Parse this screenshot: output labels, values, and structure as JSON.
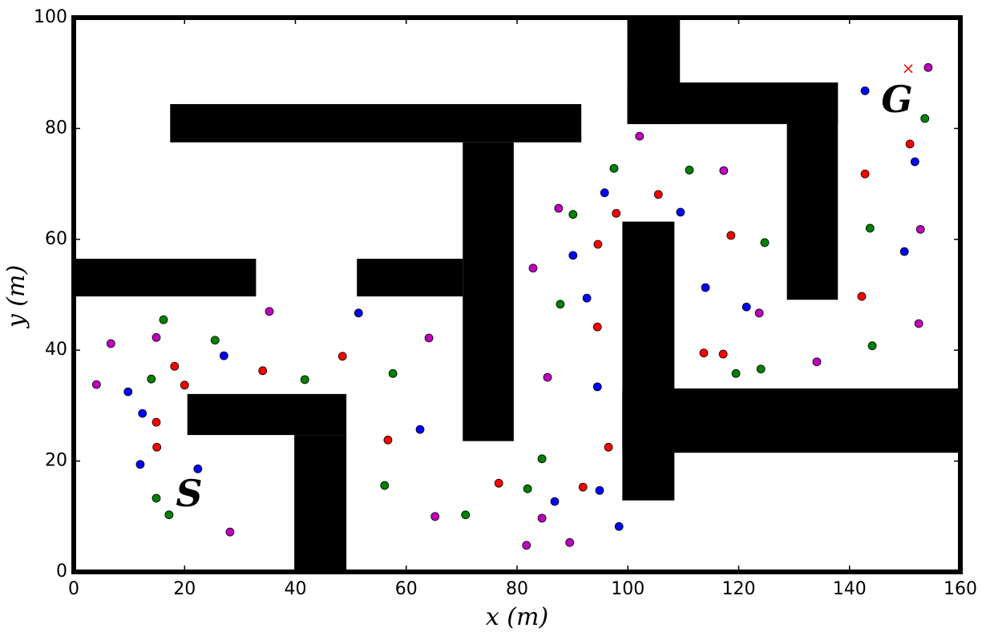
{
  "chart_data": {
    "type": "scatter",
    "xlabel": "x (m)",
    "ylabel": "y (m)",
    "xlim": [
      0,
      160
    ],
    "ylim": [
      0,
      100
    ],
    "xticks": [
      0,
      20,
      40,
      60,
      80,
      100,
      120,
      140,
      160
    ],
    "yticks": [
      0,
      20,
      40,
      60,
      80,
      100
    ],
    "annotations": [
      "S",
      "G"
    ],
    "obstacle_color": "#000000",
    "obstacles": [
      {
        "x": [
          17.4,
          91.6
        ],
        "y": [
          77.5,
          84.4
        ]
      },
      {
        "x": [
          70.2,
          79.4
        ],
        "y": [
          23.6,
          77.5
        ]
      },
      {
        "x": [
          0,
          32.9
        ],
        "y": [
          49.7,
          56.5
        ]
      },
      {
        "x": [
          51.1,
          70.2
        ],
        "y": [
          49.7,
          56.5
        ]
      },
      {
        "x": [
          20.5,
          49.2
        ],
        "y": [
          24.7,
          32.1
        ]
      },
      {
        "x": [
          39.8,
          49.2
        ],
        "y": [
          0,
          24.7
        ]
      },
      {
        "x": [
          99.9,
          109.4
        ],
        "y": [
          80.8,
          100
        ]
      },
      {
        "x": [
          99.9,
          137.9
        ],
        "y": [
          80.8,
          88.3
        ]
      },
      {
        "x": [
          128.7,
          137.9
        ],
        "y": [
          49.1,
          88.3
        ]
      },
      {
        "x": [
          99,
          108.4
        ],
        "y": [
          12.9,
          63.2
        ]
      },
      {
        "x": [
          99,
          160
        ],
        "y": [
          21.5,
          33.1
        ]
      }
    ],
    "series": [
      {
        "color": "#0000ff",
        "x": [
          142.8,
          151.8,
          149.9,
          109.5,
          95.8,
          90.1,
          92.6,
          94.5,
          114.0,
          121.4,
          51.4,
          62.5,
          27.1,
          9.8,
          12.4,
          12.0,
          22.4,
          86.8,
          94.9,
          98.4
        ],
        "values": [
          86.8,
          74.0,
          57.8,
          64.9,
          68.4,
          57.1,
          49.4,
          33.4,
          51.3,
          47.8,
          46.7,
          25.7,
          39.0,
          32.5,
          28.6,
          19.4,
          18.6,
          12.7,
          14.7,
          8.2
        ]
      },
      {
        "color": "#ff0000",
        "x": [
          150.9,
          142.8,
          142.2,
          105.5,
          97.9,
          94.6,
          94.5,
          118.6,
          113.7,
          117.2,
          48.5,
          56.7,
          34.1,
          20.0,
          18.2,
          14.9,
          15.0,
          76.7,
          91.9,
          96.5
        ],
        "values": [
          77.2,
          71.8,
          49.7,
          68.1,
          64.7,
          59.1,
          44.2,
          60.7,
          39.5,
          39.3,
          38.9,
          23.8,
          36.3,
          33.7,
          37.1,
          27.0,
          22.5,
          16.0,
          15.3,
          22.5
        ]
      },
      {
        "color": "#008000",
        "x": [
          153.6,
          143.7,
          144.1,
          97.5,
          111.1,
          90.1,
          87.8,
          124.7,
          119.5,
          124.0,
          57.6,
          56.1,
          41.7,
          25.5,
          16.2,
          14.0,
          14.9,
          17.2,
          70.7,
          81.9,
          84.5
        ],
        "values": [
          81.8,
          62.0,
          40.8,
          72.8,
          72.5,
          64.5,
          48.3,
          59.4,
          35.8,
          36.6,
          35.8,
          15.6,
          34.7,
          41.8,
          45.5,
          34.8,
          13.3,
          10.3,
          10.3,
          15.0,
          20.4
        ]
      },
      {
        "color": "#bf00bf",
        "x": [
          154.2,
          152.8,
          152.5,
          102.1,
          117.3,
          87.5,
          82.9,
          85.5,
          123.7,
          134.1,
          35.3,
          64.1,
          65.2,
          6.7,
          14.9,
          4.1,
          28.2,
          81.7,
          89.5,
          84.5
        ],
        "values": [
          91.0,
          61.8,
          44.8,
          78.6,
          72.4,
          65.6,
          54.8,
          35.1,
          46.7,
          37.9,
          47.0,
          42.2,
          10.0,
          41.2,
          42.3,
          33.8,
          7.2,
          4.8,
          5.3,
          9.7
        ]
      },
      {
        "color": "#ff0000",
        "marker": "x",
        "x": [
          150.6
        ],
        "values": [
          90.8
        ]
      }
    ]
  }
}
